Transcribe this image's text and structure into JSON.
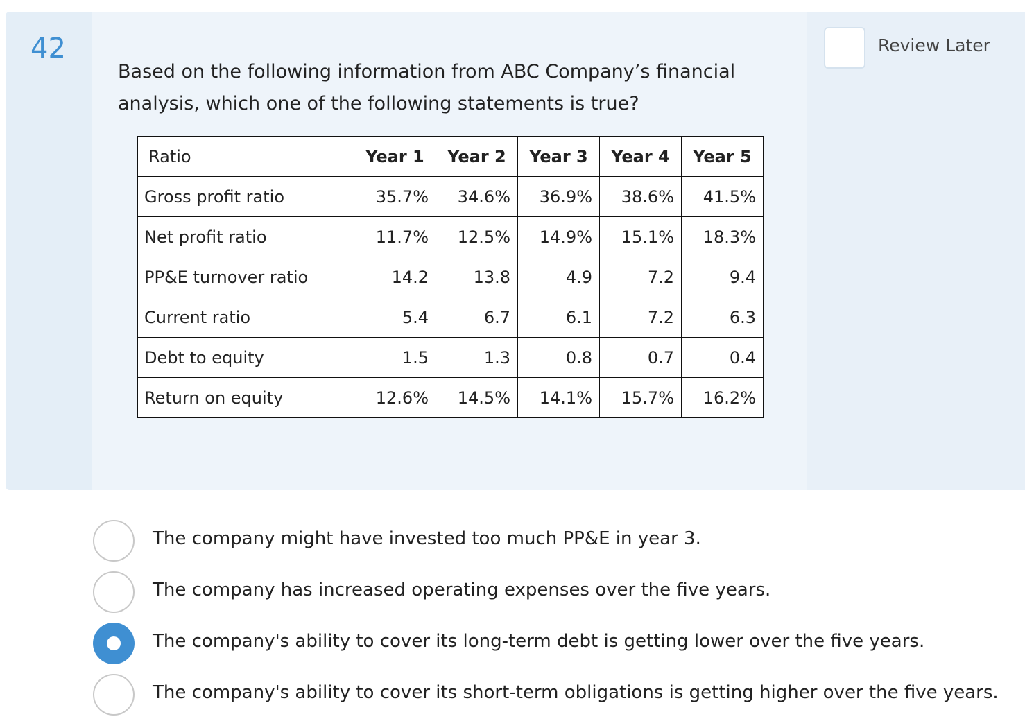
{
  "question": {
    "number": "42",
    "stem": "Based on the following information from ABC Company’s financial analysis, which one of the following statements is true?",
    "review_label": "Review Later"
  },
  "table": {
    "header": [
      "Ratio",
      "Year 1",
      "Year 2",
      "Year 3",
      "Year 4",
      "Year 5"
    ],
    "rows": [
      [
        "Gross profit ratio",
        "35.7%",
        "34.6%",
        "36.9%",
        "38.6%",
        "41.5%"
      ],
      [
        "Net profit ratio",
        "11.7%",
        "12.5%",
        "14.9%",
        "15.1%",
        "18.3%"
      ],
      [
        "PP&E turnover ratio",
        "14.2",
        "13.8",
        "4.9",
        "7.2",
        "9.4"
      ],
      [
        "Current ratio",
        "5.4",
        "6.7",
        "6.1",
        "7.2",
        "6.3"
      ],
      [
        "Debt to equity",
        "1.5",
        "1.3",
        "0.8",
        "0.7",
        "0.4"
      ],
      [
        "Return on equity",
        "12.6%",
        "14.5%",
        "14.1%",
        "15.7%",
        "16.2%"
      ]
    ]
  },
  "options": [
    {
      "text": "The company might have invested too much PP&E in year 3.",
      "selected": false
    },
    {
      "text": "The company has increased operating expenses over the five years.",
      "selected": false
    },
    {
      "text": "The company's ability to cover its long-term debt is getting lower over the five years.",
      "selected": true
    },
    {
      "text": "The company's ability to cover its short-term obligations is getting higher over the five years.",
      "selected": false
    }
  ],
  "colors": {
    "accent": "#3f8fd2",
    "card_background": "#eef4fa"
  }
}
